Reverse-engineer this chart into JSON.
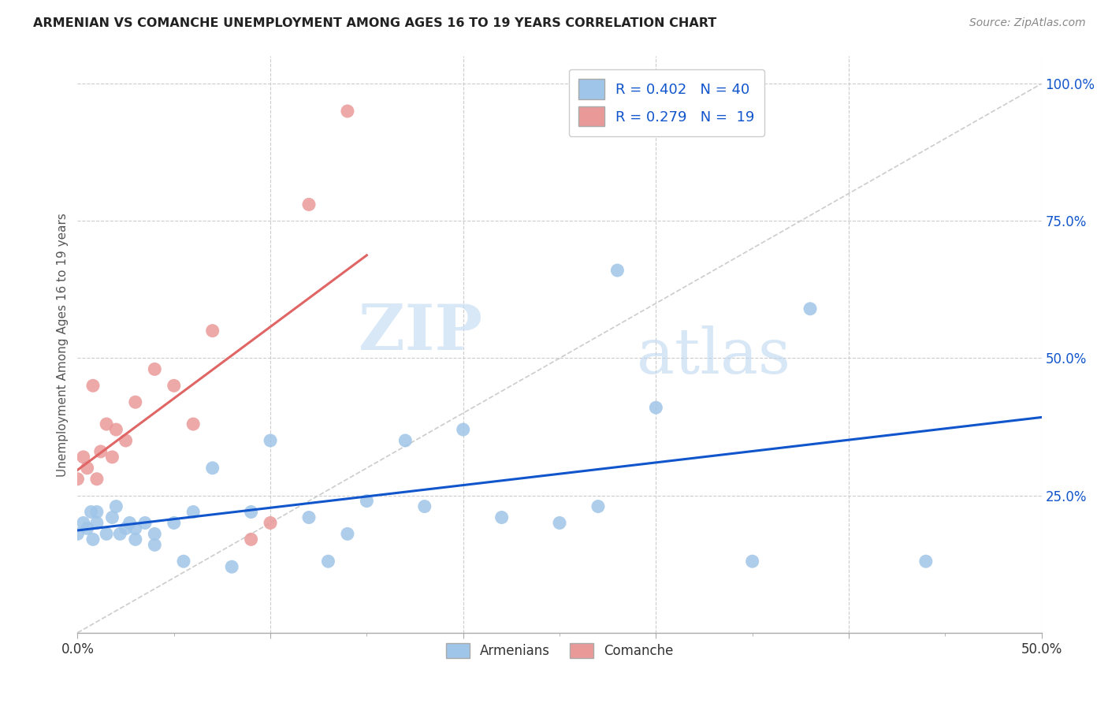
{
  "title": "ARMENIAN VS COMANCHE UNEMPLOYMENT AMONG AGES 16 TO 19 YEARS CORRELATION CHART",
  "source": "Source: ZipAtlas.com",
  "ylabel": "Unemployment Among Ages 16 to 19 years",
  "xlim": [
    0.0,
    0.5
  ],
  "ylim": [
    0.0,
    1.05
  ],
  "armenians_color": "#9fc5e8",
  "comanche_color": "#ea9999",
  "trend_armenians_color": "#1155cc",
  "trend_comanche_color": "#e06666",
  "diagonal_color": "#cccccc",
  "R_armenians": 0.402,
  "N_armenians": 40,
  "R_comanche": 0.279,
  "N_comanche": 19,
  "legend_labels": [
    "Armenians",
    "Comanche"
  ],
  "watermark_zip": "ZIP",
  "watermark_atlas": "atlas",
  "armenians_x": [
    0.0,
    0.003,
    0.005,
    0.007,
    0.008,
    0.01,
    0.01,
    0.015,
    0.018,
    0.02,
    0.022,
    0.025,
    0.027,
    0.03,
    0.03,
    0.035,
    0.04,
    0.04,
    0.05,
    0.055,
    0.06,
    0.07,
    0.08,
    0.09,
    0.1,
    0.12,
    0.13,
    0.14,
    0.15,
    0.17,
    0.18,
    0.2,
    0.22,
    0.25,
    0.27,
    0.28,
    0.3,
    0.35,
    0.38,
    0.44
  ],
  "armenians_y": [
    0.18,
    0.2,
    0.19,
    0.22,
    0.17,
    0.22,
    0.2,
    0.18,
    0.21,
    0.23,
    0.18,
    0.19,
    0.2,
    0.17,
    0.19,
    0.2,
    0.16,
    0.18,
    0.2,
    0.13,
    0.22,
    0.3,
    0.12,
    0.22,
    0.35,
    0.21,
    0.13,
    0.18,
    0.24,
    0.35,
    0.23,
    0.37,
    0.21,
    0.2,
    0.23,
    0.66,
    0.41,
    0.13,
    0.59,
    0.13
  ],
  "comanche_x": [
    0.0,
    0.003,
    0.005,
    0.008,
    0.01,
    0.012,
    0.015,
    0.018,
    0.02,
    0.025,
    0.03,
    0.04,
    0.05,
    0.06,
    0.07,
    0.09,
    0.1,
    0.12,
    0.14
  ],
  "comanche_y": [
    0.28,
    0.32,
    0.3,
    0.45,
    0.28,
    0.33,
    0.38,
    0.32,
    0.37,
    0.35,
    0.42,
    0.48,
    0.45,
    0.38,
    0.55,
    0.17,
    0.2,
    0.78,
    0.95
  ]
}
